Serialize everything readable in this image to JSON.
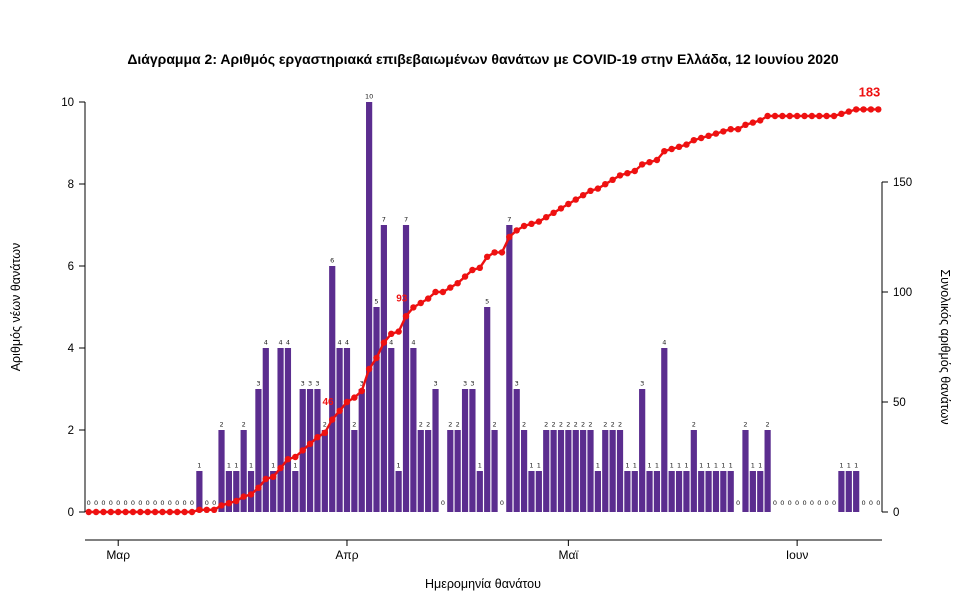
{
  "page": {
    "background": "#ffffff"
  },
  "chart_data": {
    "type": "bar",
    "combo": "daily bars with cumulative line overlay",
    "title": "Διάγραμμα 2: Αριθμός εργαστηριακά επιβεβαιωμένων θανάτων με COVID-19 στην Ελλάδα, 12 Ιουνίου 2020",
    "xlabel": "Ημερομηνία θανάτου",
    "ylabel_left": "Αριθμός νέων θανάτων",
    "ylabel_right": "Συνολικός αριθμός θανάτων",
    "x_tick_labels": [
      "Μαρ",
      "Απρ",
      "Μαϊ",
      "Ιουν"
    ],
    "x_tick_indices": [
      4,
      35,
      65,
      96
    ],
    "left_ticks": [
      0,
      2,
      4,
      6,
      8,
      10
    ],
    "right_ticks": [
      0,
      50,
      100,
      150
    ],
    "ylim_left": [
      0,
      10
    ],
    "right_axis_max": 150,
    "start_date": "2020-02-26",
    "end_date": "2020-06-12",
    "total_deaths": 183,
    "grid": false,
    "legend": false,
    "series": [
      {
        "name": "Αριθμός νέων θανάτων",
        "kind": "bar",
        "color": "#5b2d8f",
        "values": [
          0,
          0,
          0,
          0,
          0,
          0,
          0,
          0,
          0,
          0,
          0,
          0,
          0,
          0,
          0,
          1,
          0,
          0,
          2,
          1,
          1,
          2,
          1,
          3,
          4,
          1,
          4,
          4,
          1,
          3,
          3,
          3,
          2,
          6,
          4,
          4,
          2,
          3,
          10,
          5,
          7,
          4,
          1,
          7,
          4,
          2,
          2,
          3,
          0,
          2,
          2,
          3,
          3,
          1,
          5,
          2,
          0,
          7,
          3,
          2,
          1,
          1,
          2,
          2,
          2,
          2,
          2,
          2,
          2,
          1,
          2,
          2,
          2,
          1,
          1,
          3,
          1,
          1,
          4,
          1,
          1,
          1,
          2,
          1,
          1,
          1,
          1,
          1,
          0,
          2,
          1,
          1,
          2,
          0,
          0,
          0,
          0,
          0,
          0,
          0,
          0,
          0,
          1,
          1,
          1,
          0,
          0,
          0
        ]
      },
      {
        "name": "Συνολικός αριθμός θανάτων",
        "kind": "line",
        "color": "#ee1111",
        "derivation": "cumulative sum of daily values",
        "final_value": 183
      }
    ],
    "annotations": [
      {
        "text": "46",
        "index": 34,
        "emphasis": false
      },
      {
        "text": "93",
        "index": 44,
        "emphasis": false
      },
      {
        "text": "183",
        "index": 107,
        "emphasis": true
      }
    ]
  }
}
